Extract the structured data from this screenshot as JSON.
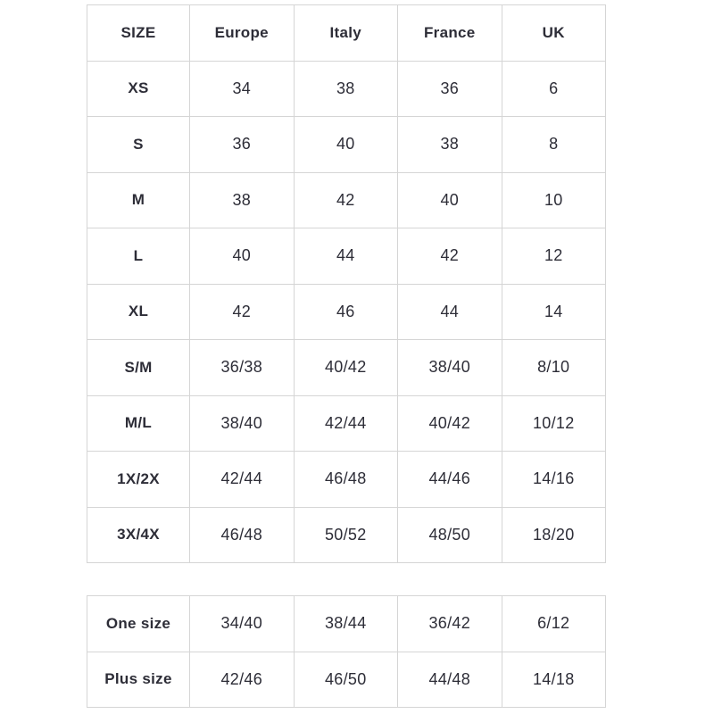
{
  "colors": {
    "background": "#ffffff",
    "border": "#d5d5d5",
    "text": "#2d2d37"
  },
  "chart_data": [
    {
      "type": "table",
      "name": "size-conversion-table",
      "columns": [
        "SIZE",
        "Europe",
        "Italy",
        "France",
        "UK"
      ],
      "rows": [
        [
          "XS",
          "34",
          "38",
          "36",
          "6"
        ],
        [
          "S",
          "36",
          "40",
          "38",
          "8"
        ],
        [
          "M",
          "38",
          "42",
          "40",
          "10"
        ],
        [
          "L",
          "40",
          "44",
          "42",
          "12"
        ],
        [
          "XL",
          "42",
          "46",
          "44",
          "14"
        ],
        [
          "S/M",
          "36/38",
          "40/42",
          "38/40",
          "8/10"
        ],
        [
          "M/L",
          "38/40",
          "42/44",
          "40/42",
          "10/12"
        ],
        [
          "1X/2X",
          "42/44",
          "46/48",
          "44/46",
          "14/16"
        ],
        [
          "3X/4X",
          "46/48",
          "50/52",
          "48/50",
          "18/20"
        ]
      ]
    },
    {
      "type": "table",
      "name": "special-sizes-table",
      "columns": [],
      "rows": [
        [
          "One size",
          "34/40",
          "38/44",
          "36/42",
          "6/12"
        ],
        [
          "Plus size",
          "42/46",
          "46/50",
          "44/48",
          "14/18"
        ]
      ]
    }
  ]
}
